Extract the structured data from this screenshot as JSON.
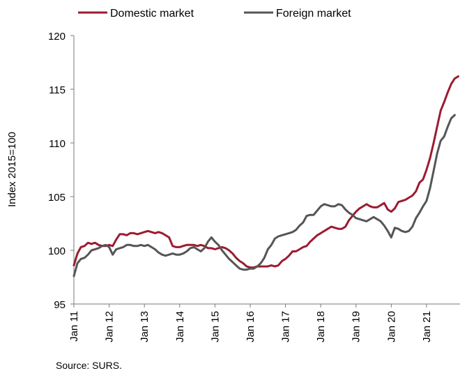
{
  "chart_data": {
    "type": "line",
    "title": "",
    "ylabel": "Index 2015=100",
    "xlabel": "",
    "ylim": [
      95,
      120
    ],
    "yticks": [
      95,
      100,
      105,
      110,
      115,
      120
    ],
    "xlim": [
      2011,
      2021.95
    ],
    "xticks": [
      {
        "value": 2011,
        "label": "Jan 11"
      },
      {
        "value": 2012,
        "label": "Jan 12"
      },
      {
        "value": 2013,
        "label": "Jan 13"
      },
      {
        "value": 2014,
        "label": "Jan 14"
      },
      {
        "value": 2015,
        "label": "Jan 15"
      },
      {
        "value": 2016,
        "label": "Jan 16"
      },
      {
        "value": 2017,
        "label": "Jan 17"
      },
      {
        "value": 2018,
        "label": "Jan 18"
      },
      {
        "value": 2019,
        "label": "Jan 19"
      },
      {
        "value": 2020,
        "label": "Jan 20"
      },
      {
        "value": 2021,
        "label": "Jan 21"
      }
    ],
    "grid": false,
    "legend_position": "top",
    "series": [
      {
        "name": "Domestic market",
        "color": "#9b1b30",
        "points": [
          [
            2011.0,
            98.6
          ],
          [
            2011.1,
            99.7
          ],
          [
            2011.2,
            100.3
          ],
          [
            2011.3,
            100.4
          ],
          [
            2011.4,
            100.7
          ],
          [
            2011.5,
            100.6
          ],
          [
            2011.6,
            100.7
          ],
          [
            2011.7,
            100.5
          ],
          [
            2011.8,
            100.4
          ],
          [
            2011.9,
            100.4
          ],
          [
            2012.0,
            100.5
          ],
          [
            2012.1,
            100.4
          ],
          [
            2012.2,
            101.0
          ],
          [
            2012.3,
            101.5
          ],
          [
            2012.4,
            101.5
          ],
          [
            2012.5,
            101.4
          ],
          [
            2012.6,
            101.6
          ],
          [
            2012.7,
            101.6
          ],
          [
            2012.8,
            101.5
          ],
          [
            2012.9,
            101.6
          ],
          [
            2013.0,
            101.7
          ],
          [
            2013.1,
            101.8
          ],
          [
            2013.2,
            101.7
          ],
          [
            2013.3,
            101.6
          ],
          [
            2013.4,
            101.7
          ],
          [
            2013.5,
            101.6
          ],
          [
            2013.6,
            101.4
          ],
          [
            2013.7,
            101.2
          ],
          [
            2013.8,
            100.4
          ],
          [
            2013.9,
            100.3
          ],
          [
            2014.0,
            100.3
          ],
          [
            2014.1,
            100.4
          ],
          [
            2014.2,
            100.5
          ],
          [
            2014.3,
            100.5
          ],
          [
            2014.4,
            100.5
          ],
          [
            2014.5,
            100.4
          ],
          [
            2014.6,
            100.5
          ],
          [
            2014.7,
            100.4
          ],
          [
            2014.8,
            100.2
          ],
          [
            2014.9,
            100.2
          ],
          [
            2015.0,
            100.1
          ],
          [
            2015.1,
            100.2
          ],
          [
            2015.2,
            100.3
          ],
          [
            2015.3,
            100.2
          ],
          [
            2015.4,
            100.0
          ],
          [
            2015.5,
            99.7
          ],
          [
            2015.6,
            99.3
          ],
          [
            2015.7,
            99.0
          ],
          [
            2015.8,
            98.8
          ],
          [
            2015.9,
            98.5
          ],
          [
            2016.0,
            98.4
          ],
          [
            2016.1,
            98.4
          ],
          [
            2016.2,
            98.5
          ],
          [
            2016.3,
            98.5
          ],
          [
            2016.4,
            98.5
          ],
          [
            2016.5,
            98.5
          ],
          [
            2016.6,
            98.6
          ],
          [
            2016.7,
            98.5
          ],
          [
            2016.8,
            98.6
          ],
          [
            2016.9,
            99.0
          ],
          [
            2017.0,
            99.2
          ],
          [
            2017.1,
            99.5
          ],
          [
            2017.2,
            99.9
          ],
          [
            2017.3,
            99.9
          ],
          [
            2017.4,
            100.1
          ],
          [
            2017.5,
            100.3
          ],
          [
            2017.6,
            100.4
          ],
          [
            2017.7,
            100.8
          ],
          [
            2017.8,
            101.1
          ],
          [
            2017.9,
            101.4
          ],
          [
            2018.0,
            101.6
          ],
          [
            2018.1,
            101.8
          ],
          [
            2018.2,
            102.0
          ],
          [
            2018.3,
            102.2
          ],
          [
            2018.4,
            102.1
          ],
          [
            2018.5,
            102.0
          ],
          [
            2018.6,
            102.0
          ],
          [
            2018.7,
            102.2
          ],
          [
            2018.8,
            102.8
          ],
          [
            2018.9,
            103.2
          ],
          [
            2019.0,
            103.6
          ],
          [
            2019.1,
            103.9
          ],
          [
            2019.2,
            104.1
          ],
          [
            2019.3,
            104.3
          ],
          [
            2019.4,
            104.1
          ],
          [
            2019.5,
            104.0
          ],
          [
            2019.6,
            104.0
          ],
          [
            2019.7,
            104.2
          ],
          [
            2019.8,
            104.4
          ],
          [
            2019.9,
            103.8
          ],
          [
            2020.0,
            103.6
          ],
          [
            2020.1,
            103.9
          ],
          [
            2020.2,
            104.5
          ],
          [
            2020.3,
            104.6
          ],
          [
            2020.4,
            104.7
          ],
          [
            2020.5,
            104.9
          ],
          [
            2020.6,
            105.1
          ],
          [
            2020.7,
            105.5
          ],
          [
            2020.8,
            106.3
          ],
          [
            2020.9,
            106.6
          ],
          [
            2021.0,
            107.5
          ],
          [
            2021.1,
            108.6
          ],
          [
            2021.2,
            110.0
          ],
          [
            2021.3,
            111.5
          ],
          [
            2021.4,
            113.0
          ],
          [
            2021.5,
            113.8
          ],
          [
            2021.6,
            114.7
          ],
          [
            2021.7,
            115.5
          ],
          [
            2021.8,
            116.0
          ],
          [
            2021.9,
            116.2
          ]
        ]
      },
      {
        "name": "Foreign market",
        "color": "#555555",
        "points": [
          [
            2011.0,
            97.6
          ],
          [
            2011.1,
            98.8
          ],
          [
            2011.2,
            99.2
          ],
          [
            2011.3,
            99.3
          ],
          [
            2011.4,
            99.6
          ],
          [
            2011.5,
            100.0
          ],
          [
            2011.6,
            100.1
          ],
          [
            2011.7,
            100.2
          ],
          [
            2011.8,
            100.4
          ],
          [
            2011.9,
            100.5
          ],
          [
            2012.0,
            100.3
          ],
          [
            2012.1,
            99.6
          ],
          [
            2012.2,
            100.1
          ],
          [
            2012.3,
            100.2
          ],
          [
            2012.4,
            100.3
          ],
          [
            2012.5,
            100.5
          ],
          [
            2012.6,
            100.5
          ],
          [
            2012.7,
            100.4
          ],
          [
            2012.8,
            100.4
          ],
          [
            2012.9,
            100.5
          ],
          [
            2013.0,
            100.4
          ],
          [
            2013.1,
            100.5
          ],
          [
            2013.2,
            100.3
          ],
          [
            2013.3,
            100.1
          ],
          [
            2013.4,
            99.8
          ],
          [
            2013.5,
            99.6
          ],
          [
            2013.6,
            99.5
          ],
          [
            2013.7,
            99.6
          ],
          [
            2013.8,
            99.7
          ],
          [
            2013.9,
            99.6
          ],
          [
            2014.0,
            99.6
          ],
          [
            2014.1,
            99.7
          ],
          [
            2014.2,
            99.9
          ],
          [
            2014.3,
            100.2
          ],
          [
            2014.4,
            100.3
          ],
          [
            2014.5,
            100.1
          ],
          [
            2014.6,
            99.9
          ],
          [
            2014.7,
            100.2
          ],
          [
            2014.8,
            100.8
          ],
          [
            2014.9,
            101.2
          ],
          [
            2015.0,
            100.8
          ],
          [
            2015.1,
            100.5
          ],
          [
            2015.2,
            100.0
          ],
          [
            2015.3,
            99.6
          ],
          [
            2015.4,
            99.2
          ],
          [
            2015.5,
            98.9
          ],
          [
            2015.6,
            98.6
          ],
          [
            2015.7,
            98.3
          ],
          [
            2015.8,
            98.2
          ],
          [
            2015.9,
            98.2
          ],
          [
            2016.0,
            98.3
          ],
          [
            2016.1,
            98.3
          ],
          [
            2016.2,
            98.5
          ],
          [
            2016.3,
            98.8
          ],
          [
            2016.4,
            99.3
          ],
          [
            2016.5,
            100.1
          ],
          [
            2016.6,
            100.5
          ],
          [
            2016.7,
            101.1
          ],
          [
            2016.8,
            101.3
          ],
          [
            2016.9,
            101.4
          ],
          [
            2017.0,
            101.5
          ],
          [
            2017.1,
            101.6
          ],
          [
            2017.2,
            101.7
          ],
          [
            2017.3,
            101.9
          ],
          [
            2017.4,
            102.3
          ],
          [
            2017.5,
            102.6
          ],
          [
            2017.6,
            103.2
          ],
          [
            2017.7,
            103.3
          ],
          [
            2017.8,
            103.3
          ],
          [
            2017.9,
            103.7
          ],
          [
            2018.0,
            104.1
          ],
          [
            2018.1,
            104.3
          ],
          [
            2018.2,
            104.2
          ],
          [
            2018.3,
            104.1
          ],
          [
            2018.4,
            104.1
          ],
          [
            2018.5,
            104.3
          ],
          [
            2018.6,
            104.2
          ],
          [
            2018.7,
            103.8
          ],
          [
            2018.8,
            103.5
          ],
          [
            2018.9,
            103.3
          ],
          [
            2019.0,
            103.0
          ],
          [
            2019.1,
            102.9
          ],
          [
            2019.2,
            102.8
          ],
          [
            2019.3,
            102.7
          ],
          [
            2019.4,
            102.9
          ],
          [
            2019.5,
            103.1
          ],
          [
            2019.6,
            102.9
          ],
          [
            2019.7,
            102.7
          ],
          [
            2019.8,
            102.3
          ],
          [
            2019.9,
            101.8
          ],
          [
            2020.0,
            101.2
          ],
          [
            2020.1,
            102.1
          ],
          [
            2020.2,
            102.0
          ],
          [
            2020.3,
            101.8
          ],
          [
            2020.4,
            101.7
          ],
          [
            2020.5,
            101.8
          ],
          [
            2020.6,
            102.2
          ],
          [
            2020.7,
            103.0
          ],
          [
            2020.8,
            103.5
          ],
          [
            2020.9,
            104.1
          ],
          [
            2021.0,
            104.6
          ],
          [
            2021.1,
            105.8
          ],
          [
            2021.2,
            107.4
          ],
          [
            2021.3,
            109.0
          ],
          [
            2021.4,
            110.2
          ],
          [
            2021.5,
            110.6
          ],
          [
            2021.6,
            111.5
          ],
          [
            2021.7,
            112.3
          ],
          [
            2021.8,
            112.6
          ]
        ]
      }
    ]
  },
  "source_note": "Source: SURS."
}
